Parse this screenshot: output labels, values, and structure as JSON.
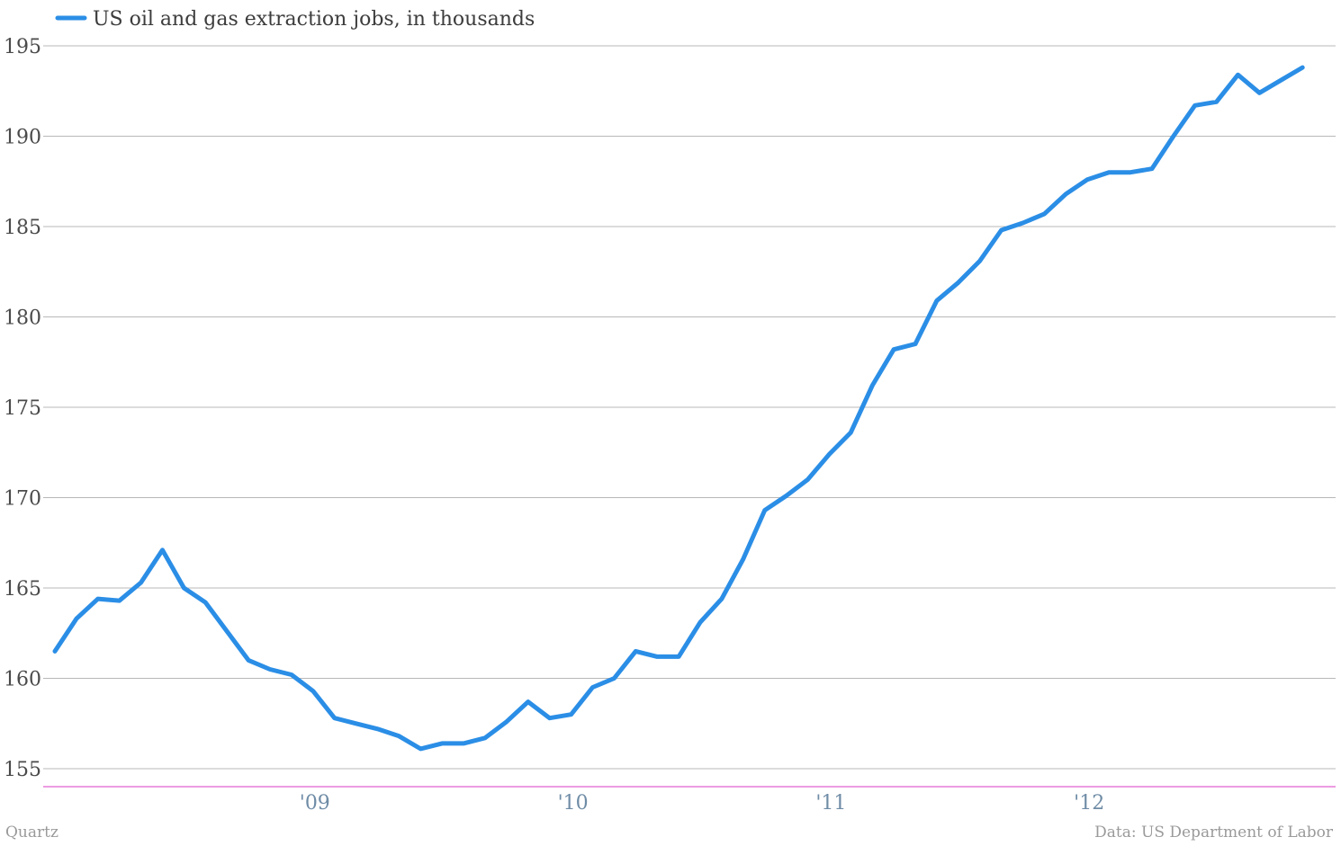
{
  "chart_data": {
    "type": "line",
    "title": "",
    "xlabel": "",
    "ylabel": "",
    "x_tick_labels": [
      "'09",
      "'10",
      "'11",
      "'12"
    ],
    "y_ticks": [
      155,
      160,
      165,
      170,
      175,
      180,
      185,
      190,
      195
    ],
    "ylim": [
      154,
      196
    ],
    "grid": true,
    "legend_position": "top-left",
    "series": [
      {
        "name": "US oil and gas extraction jobs, in thousands",
        "color": "#2b8ee6",
        "x": [
          "2008-01",
          "2008-02",
          "2008-03",
          "2008-04",
          "2008-05",
          "2008-06",
          "2008-07",
          "2008-08",
          "2008-09",
          "2008-10",
          "2008-11",
          "2008-12",
          "2009-01",
          "2009-02",
          "2009-03",
          "2009-04",
          "2009-05",
          "2009-06",
          "2009-07",
          "2009-08",
          "2009-09",
          "2009-10",
          "2009-11",
          "2009-12",
          "2010-01",
          "2010-02",
          "2010-03",
          "2010-04",
          "2010-05",
          "2010-06",
          "2010-07",
          "2010-08",
          "2010-09",
          "2010-10",
          "2010-11",
          "2010-12",
          "2011-01",
          "2011-02",
          "2011-03",
          "2011-04",
          "2011-05",
          "2011-06",
          "2011-07",
          "2011-08",
          "2011-09",
          "2011-10",
          "2011-11",
          "2011-12",
          "2012-01",
          "2012-02",
          "2012-03",
          "2012-04",
          "2012-05",
          "2012-06",
          "2012-07",
          "2012-08",
          "2012-09",
          "2012-10",
          "2012-11"
        ],
        "values": [
          161.5,
          163.3,
          164.4,
          164.3,
          165.3,
          167.1,
          165.0,
          164.2,
          162.6,
          161.0,
          160.5,
          160.2,
          159.3,
          157.8,
          157.5,
          157.2,
          156.8,
          156.1,
          156.4,
          156.4,
          156.7,
          157.6,
          158.7,
          157.8,
          158.0,
          159.5,
          160.0,
          161.5,
          161.2,
          161.2,
          163.1,
          164.4,
          166.6,
          169.3,
          170.1,
          171.0,
          172.4,
          173.6,
          176.2,
          178.2,
          178.5,
          180.9,
          181.9,
          183.1,
          184.8,
          185.2,
          185.7,
          186.8,
          187.6,
          188.0,
          188.0,
          188.2,
          190.0,
          191.7,
          191.9,
          193.4,
          192.4,
          193.1,
          193.8
        ]
      }
    ]
  },
  "footer": {
    "source_left": "Quartz",
    "source_right": "Data: US Department of Labor"
  }
}
